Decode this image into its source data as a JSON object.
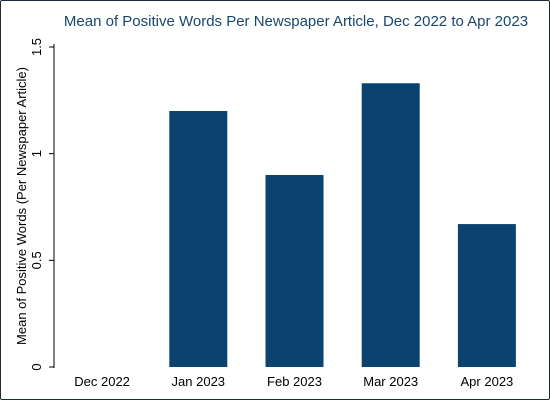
{
  "chart_data": {
    "type": "bar",
    "title": "Mean of Positive Words Per Newspaper Article, Dec 2022 to Apr 2023",
    "xlabel": "",
    "ylabel": "Mean of Positive Words (Per Newspaper Article)",
    "categories": [
      "Dec 2022",
      "Jan 2023",
      "Feb 2023",
      "Mar 2023",
      "Apr 2023"
    ],
    "values": [
      0,
      1.2,
      0.9,
      1.33,
      0.67
    ],
    "ylim": [
      0,
      1.5
    ],
    "yticks": [
      0,
      0.5,
      1,
      1.5
    ],
    "ytick_labels": [
      "0",
      "0.5",
      "1",
      "1.5"
    ],
    "bar_color": "#0b4370",
    "title_color": "#1a476f",
    "grid": false,
    "legend": "none"
  }
}
